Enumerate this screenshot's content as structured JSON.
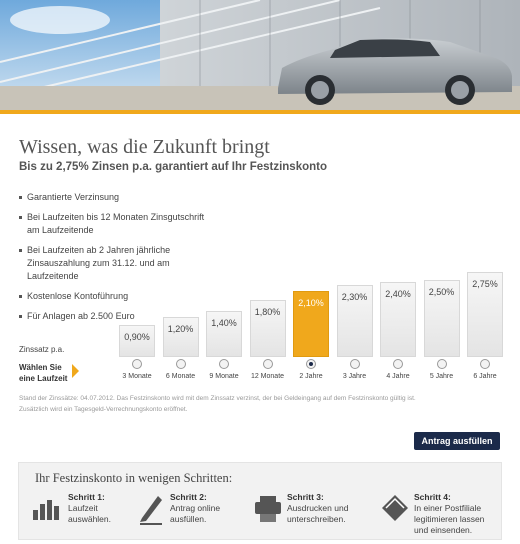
{
  "header": {
    "title": "Wissen, was die Zukunft bringt",
    "subtitle": "Bis zu 2,75% Zinsen p.a. garantiert auf Ihr Festzinskonto"
  },
  "features": [
    "Garantierte Verzinsung",
    "Bei Laufzeiten bis 12 Monaten Zinsgutschrift am Laufzeitende",
    "Bei Laufzeiten ab 2 Jahren jährliche Zinsauszahlung zum 31.12. und am Laufzeitende",
    "Kostenlose Kontoführung",
    "Für Anlagen ab 2.500 Euro"
  ],
  "rate_selector": {
    "rate_label": "Zinssatz p.a.",
    "term_label": "Wählen Sie eine Laufzeit",
    "terms": [
      "3 Monate",
      "6 Monate",
      "9 Monate",
      "12 Monate",
      "2 Jahre",
      "3 Jahre",
      "4 Jahre",
      "5 Jahre",
      "6 Jahre"
    ],
    "rates": [
      {
        "value": 0.9,
        "label": "0,90%"
      },
      {
        "value": 1.2,
        "label": "1,20%"
      },
      {
        "value": 1.4,
        "label": "1,40%"
      },
      {
        "value": 1.8,
        "label": "1,80%"
      },
      {
        "value": 2.1,
        "label": "2,10%"
      },
      {
        "value": 2.3,
        "label": "2,30%"
      },
      {
        "value": 2.4,
        "label": "2,40%"
      },
      {
        "value": 2.5,
        "label": "2,50%"
      },
      {
        "value": 2.75,
        "label": "2,75%"
      }
    ],
    "selected": 4
  },
  "footnote": [
    "Stand der Zinssätze: 04.07.2012. Das Festzinskonto wird mit dem Zinssatz verzinst, der bei Geldeingang auf dem Festzinskonto gültig ist.",
    "Zusätzlich wird ein Tagesgeld-Verrechnungskonto eröffnet."
  ],
  "button": "Antrag ausfüllen",
  "steps": {
    "title": "Ihr Festzinskonto in wenigen Schritten:",
    "items": [
      {
        "title": "Schritt 1:",
        "text": "Laufzeit auswählen."
      },
      {
        "title": "Schritt 2:",
        "text": "Antrag online ausfüllen."
      },
      {
        "title": "Schritt 3:",
        "text": "Ausdrucken und unterschreiben."
      },
      {
        "title": "Schritt 4:",
        "text": "In einer Postfiliale legitimieren lassen und einsenden."
      }
    ]
  }
}
